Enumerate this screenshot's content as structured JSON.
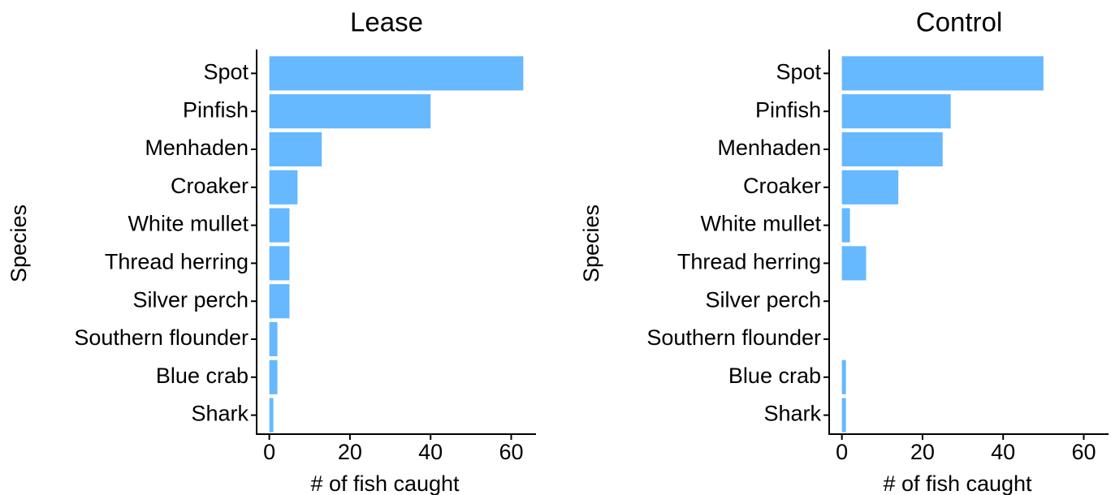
{
  "chart_data": [
    {
      "type": "bar",
      "orientation": "horizontal",
      "title": "Lease",
      "xlabel": "# of fish caught",
      "ylabel": "Species",
      "categories": [
        "Spot",
        "Pinfish",
        "Menhaden",
        "Croaker",
        "White mullet",
        "Thread herring",
        "Silver perch",
        "Southern flounder",
        "Blue crab",
        "Shark"
      ],
      "values": [
        63,
        40,
        13,
        7,
        5,
        5,
        5,
        2,
        2,
        1
      ],
      "color": "#66b8ff",
      "xlim": [
        -3.15,
        66.15
      ],
      "xticks": [
        0,
        20,
        40,
        60
      ]
    },
    {
      "type": "bar",
      "orientation": "horizontal",
      "title": "Control",
      "xlabel": "# of fish caught",
      "ylabel": "Species",
      "categories": [
        "Spot",
        "Pinfish",
        "Menhaden",
        "Croaker",
        "White mullet",
        "Thread herring",
        "Silver perch",
        "Southern flounder",
        "Blue crab",
        "Shark"
      ],
      "values": [
        50,
        27,
        25,
        14,
        2,
        6,
        0,
        0,
        1,
        1
      ],
      "color": "#66b8ff",
      "xlim": [
        -3.15,
        66.15
      ],
      "xticks": [
        0,
        20,
        40,
        60
      ]
    }
  ]
}
